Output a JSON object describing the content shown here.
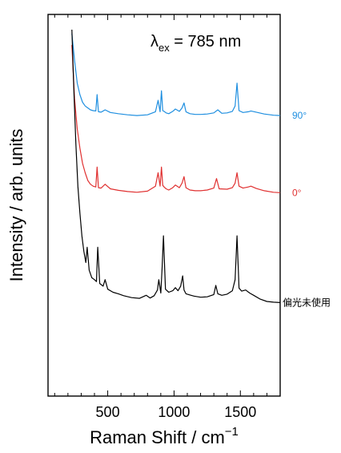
{
  "chart_data": {
    "type": "line",
    "title": "",
    "xlabel": "Raman Shift / cm",
    "xlabel_sup": "−1",
    "ylabel": "Intensity / arb. units",
    "xlim": [
      50,
      1800
    ],
    "ylim": [
      0,
      100
    ],
    "x_ticks": [
      500,
      1000,
      1500
    ],
    "x_tick_labels": [
      "500",
      "1000",
      "1500"
    ],
    "y_ticks_visible": false,
    "grid": false,
    "annotation": {
      "lambda": "λ",
      "sub": "ex",
      "rest": " = 785 nm"
    },
    "series": [
      {
        "name": "90°",
        "color": "#1f8fe0",
        "x": [
          230,
          250,
          270,
          290,
          310,
          330,
          350,
          370,
          390,
          410,
          420,
          430,
          450,
          480,
          520,
          580,
          650,
          720,
          800,
          860,
          880,
          895,
          905,
          915,
          925,
          940,
          960,
          990,
          1010,
          1040,
          1060,
          1075,
          1090,
          1120,
          1160,
          1200,
          1250,
          1300,
          1330,
          1360,
          1400,
          1440,
          1460,
          1475,
          1490,
          1520,
          1560,
          1580,
          1620,
          1680,
          1750,
          1800
        ],
        "y": [
          95,
          88,
          82,
          79,
          77,
          76,
          75.5,
          75,
          74.8,
          74.7,
          79,
          74.5,
          74.4,
          75,
          74.3,
          74,
          73.7,
          73.5,
          73.7,
          74.5,
          77.5,
          74.5,
          80,
          74.8,
          74.6,
          74.2,
          74,
          74.6,
          75.2,
          74.6,
          75.5,
          76.8,
          74.5,
          74,
          73.8,
          73.8,
          73.9,
          74.2,
          75,
          74.1,
          74.2,
          74.6,
          76,
          82,
          74.8,
          74.3,
          74.5,
          74.7,
          74.4,
          73.9,
          73.6,
          73.5
        ]
      },
      {
        "name": "0°",
        "color": "#e03030",
        "x": [
          230,
          250,
          270,
          290,
          310,
          330,
          350,
          370,
          390,
          410,
          420,
          430,
          450,
          480,
          520,
          580,
          650,
          720,
          800,
          860,
          880,
          895,
          905,
          915,
          925,
          940,
          960,
          990,
          1010,
          1040,
          1060,
          1075,
          1090,
          1120,
          1160,
          1200,
          1250,
          1300,
          1320,
          1340,
          1400,
          1440,
          1460,
          1475,
          1490,
          1520,
          1560,
          1580,
          1620,
          1680,
          1750,
          1800
        ],
        "y": [
          92,
          78,
          70,
          65,
          61,
          58.5,
          56.5,
          55.5,
          55,
          54.8,
          60,
          54.6,
          54.5,
          55.5,
          54.3,
          53.9,
          53.6,
          53.4,
          53.7,
          55,
          58.5,
          55,
          60,
          55.2,
          54.8,
          54.3,
          54,
          54.6,
          55.3,
          54.6,
          55.8,
          57.5,
          54.6,
          54,
          53.8,
          53.8,
          54,
          54.5,
          57,
          54.3,
          54.2,
          54.6,
          55.8,
          58.5,
          55,
          54.5,
          54.8,
          55,
          54.4,
          53.8,
          53.4,
          53.3
        ]
      },
      {
        "name": "偏光未使用",
        "color": "#000000",
        "x": [
          230,
          245,
          260,
          275,
          290,
          305,
          320,
          335,
          345,
          360,
          380,
          400,
          415,
          425,
          440,
          465,
          480,
          500,
          540,
          580,
          620,
          680,
          740,
          790,
          820,
          850,
          875,
          885,
          900,
          910,
          920,
          935,
          960,
          990,
          1010,
          1030,
          1050,
          1065,
          1075,
          1090,
          1120,
          1150,
          1200,
          1250,
          1300,
          1315,
          1330,
          1360,
          1400,
          1440,
          1460,
          1475,
          1490,
          1510,
          1540,
          1570,
          1600,
          1650,
          1700,
          1750,
          1800
        ],
        "y": [
          96,
          80,
          66,
          55,
          48,
          42,
          38,
          35,
          39,
          33,
          31,
          30.5,
          30,
          39,
          29.5,
          28.8,
          30.5,
          28,
          27.2,
          26.8,
          26.3,
          25.8,
          25.6,
          26.4,
          25.7,
          26.3,
          27.8,
          30.5,
          27,
          33.5,
          42,
          28,
          27.2,
          27.6,
          28.4,
          27.6,
          28.8,
          31.5,
          27.8,
          26.8,
          26.5,
          26.2,
          25.9,
          26,
          26.6,
          29,
          26.8,
          26.4,
          26.7,
          27.6,
          30.5,
          42,
          28.3,
          27.5,
          27.8,
          27,
          26.4,
          25.4,
          24.8,
          24.6,
          24.5
        ]
      }
    ]
  }
}
